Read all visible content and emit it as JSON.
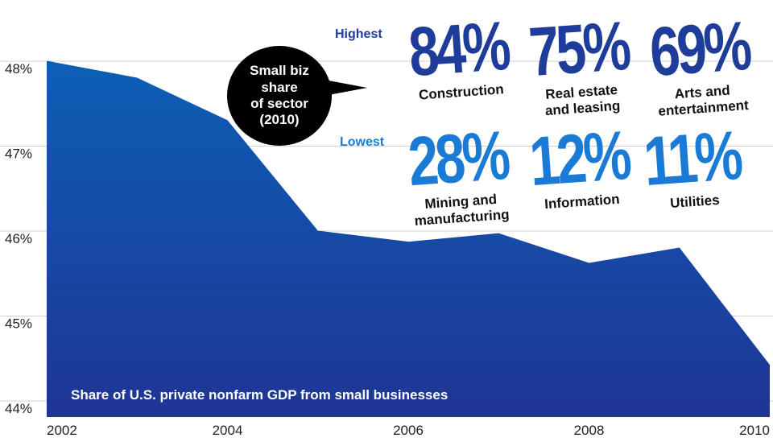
{
  "chart_data": {
    "type": "area",
    "title": "",
    "caption": "Share of U.S. private nonfarm GDP from small businesses",
    "x": [
      2002,
      2003,
      2004,
      2005,
      2006,
      2007,
      2008,
      2009,
      2010
    ],
    "x_ticks": [
      "2002",
      "2004",
      "2006",
      "2008",
      "2010"
    ],
    "values": [
      48.1,
      47.9,
      47.4,
      46.1,
      45.97,
      46.07,
      45.72,
      45.9,
      44.52
    ],
    "y_ticks": [
      "44%",
      "45%",
      "46%",
      "47%",
      "48%"
    ],
    "ylim": [
      44,
      48.5
    ],
    "grid": "horizontal",
    "fill_color_top": "#0d5fb6",
    "fill_color_bottom": "#1f3594"
  },
  "callout": {
    "lines": [
      "Small biz",
      "share",
      "of sector",
      "(2010)"
    ]
  },
  "groups": {
    "highest_label": "Highest",
    "lowest_label": "Lowest"
  },
  "highest": [
    {
      "value": "84%",
      "label_lines": [
        "Construction"
      ]
    },
    {
      "value": "75%",
      "label_lines": [
        "Real estate",
        "and leasing"
      ]
    },
    {
      "value": "69%",
      "label_lines": [
        "Arts and",
        "entertainment"
      ]
    }
  ],
  "lowest": [
    {
      "value": "28%",
      "label_lines": [
        "Mining and",
        "manufacturing"
      ]
    },
    {
      "value": "12%",
      "label_lines": [
        "Information"
      ]
    },
    {
      "value": "11%",
      "label_lines": [
        "Utilities"
      ]
    }
  ]
}
